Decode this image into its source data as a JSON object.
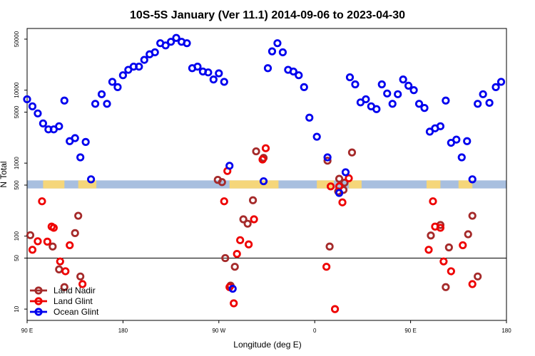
{
  "chart_data": {
    "type": "scatter",
    "title": "10S-5S January (Ver 11.1)   2014-09-06 to 2023-04-30",
    "xlabel": "Longitude (deg E)",
    "ylabel": "N Total",
    "y_scale": "log",
    "xlim_label_order": [
      "90 E",
      "180",
      "90 W",
      "0",
      "90 E",
      "180"
    ],
    "x_ticks": [
      {
        "pos": 0,
        "label": "90 E"
      },
      {
        "pos": 90,
        "label": "180"
      },
      {
        "pos": 180,
        "label": "90 W"
      },
      {
        "pos": 270,
        "label": "0"
      },
      {
        "pos": 360,
        "label": "90 E"
      },
      {
        "pos": 450,
        "label": "180"
      }
    ],
    "y_ticks": [
      {
        "value": 10,
        "label": "10"
      },
      {
        "value": 50,
        "label": "50"
      },
      {
        "value": 100,
        "label": "100"
      },
      {
        "value": 500,
        "label": "500"
      },
      {
        "value": 1000,
        "label": "1000"
      },
      {
        "value": 5000,
        "label": "5000"
      },
      {
        "value": 10000,
        "label": "10000"
      },
      {
        "value": 50000,
        "label": "50000"
      }
    ],
    "xlim": [
      0,
      450
    ],
    "ylim": [
      7,
      70000
    ],
    "reference_line_y": 50,
    "band": {
      "y_low": 450,
      "y_high": 580,
      "color": "#a8bfdf"
    },
    "land_color": "#f5d67a",
    "land_segments": [
      {
        "x_start": 15,
        "x_end": 35
      },
      {
        "x_start": 48,
        "x_end": 65
      },
      {
        "x_start": 190,
        "x_end": 236
      },
      {
        "x_start": 272,
        "x_end": 288
      },
      {
        "x_start": 302,
        "x_end": 314
      },
      {
        "x_start": 375,
        "x_end": 388
      },
      {
        "x_start": 405,
        "x_end": 418
      }
    ],
    "legend_position": "bottom-left",
    "series": [
      {
        "name": "Land Nadir",
        "color": "#a52a2a",
        "points": [
          [
            3,
            103
          ],
          [
            24,
            72
          ],
          [
            30,
            35
          ],
          [
            35,
            20
          ],
          [
            45,
            110
          ],
          [
            48,
            190
          ],
          [
            50,
            28
          ],
          [
            179,
            590
          ],
          [
            183,
            550
          ],
          [
            186,
            50
          ],
          [
            191,
            21
          ],
          [
            195,
            38
          ],
          [
            203,
            170
          ],
          [
            207,
            148
          ],
          [
            212,
            310
          ],
          [
            215,
            1450
          ],
          [
            222,
            1180
          ],
          [
            282,
            1080
          ],
          [
            284,
            72
          ],
          [
            292,
            410
          ],
          [
            293,
            610
          ],
          [
            297,
            430
          ],
          [
            298,
            540
          ],
          [
            305,
            1400
          ],
          [
            379,
            102
          ],
          [
            388,
            142
          ],
          [
            393,
            20
          ],
          [
            396,
            70
          ],
          [
            414,
            106
          ],
          [
            418,
            190
          ],
          [
            423,
            28
          ]
        ]
      },
      {
        "name": "Land Glint",
        "color": "#ee0000",
        "points": [
          [
            5,
            65
          ],
          [
            10,
            85
          ],
          [
            14,
            300
          ],
          [
            19,
            84
          ],
          [
            23,
            135
          ],
          [
            25,
            130
          ],
          [
            31,
            45
          ],
          [
            36,
            33
          ],
          [
            40,
            75
          ],
          [
            52,
            22
          ],
          [
            185,
            300
          ],
          [
            188,
            780
          ],
          [
            190,
            20
          ],
          [
            194,
            12
          ],
          [
            197,
            57
          ],
          [
            200,
            88
          ],
          [
            208,
            77
          ],
          [
            213,
            170
          ],
          [
            221,
            1120
          ],
          [
            224,
            1600
          ],
          [
            281,
            38
          ],
          [
            285,
            480
          ],
          [
            289,
            10
          ],
          [
            293,
            480
          ],
          [
            296,
            290
          ],
          [
            302,
            620
          ],
          [
            377,
            65
          ],
          [
            381,
            300
          ],
          [
            383,
            135
          ],
          [
            388,
            130
          ],
          [
            391,
            45
          ],
          [
            398,
            33
          ],
          [
            409,
            75
          ],
          [
            418,
            22
          ]
        ]
      },
      {
        "name": "Ocean Glint",
        "color": "#0000ee",
        "points": [
          [
            0,
            7500
          ],
          [
            5,
            6000
          ],
          [
            10,
            4800
          ],
          [
            15,
            3500
          ],
          [
            20,
            2900
          ],
          [
            25,
            2900
          ],
          [
            30,
            3200
          ],
          [
            35,
            7200
          ],
          [
            40,
            2000
          ],
          [
            45,
            2200
          ],
          [
            50,
            1200
          ],
          [
            55,
            1950
          ],
          [
            60,
            600
          ],
          [
            64,
            6500
          ],
          [
            70,
            8800
          ],
          [
            75,
            6500
          ],
          [
            80,
            13000
          ],
          [
            85,
            11000
          ],
          [
            90,
            16000
          ],
          [
            95,
            19000
          ],
          [
            100,
            21000
          ],
          [
            105,
            21000
          ],
          [
            110,
            26000
          ],
          [
            115,
            31000
          ],
          [
            120,
            33000
          ],
          [
            125,
            44000
          ],
          [
            130,
            41000
          ],
          [
            135,
            46000
          ],
          [
            140,
            52000
          ],
          [
            145,
            46000
          ],
          [
            150,
            44000
          ],
          [
            155,
            20000
          ],
          [
            160,
            21000
          ],
          [
            165,
            18000
          ],
          [
            170,
            17500
          ],
          [
            175,
            14000
          ],
          [
            180,
            17000
          ],
          [
            185,
            13000
          ],
          [
            190,
            920
          ],
          [
            193,
            19
          ],
          [
            222,
            565
          ],
          [
            226,
            20000
          ],
          [
            230,
            34000
          ],
          [
            235,
            44000
          ],
          [
            240,
            33000
          ],
          [
            245,
            19000
          ],
          [
            250,
            18000
          ],
          [
            255,
            16000
          ],
          [
            260,
            11000
          ],
          [
            265,
            4200
          ],
          [
            272,
            2300
          ],
          [
            282,
            1200
          ],
          [
            293,
            390
          ],
          [
            299,
            750
          ],
          [
            303,
            15000
          ],
          [
            308,
            12000
          ],
          [
            313,
            6800
          ],
          [
            318,
            7500
          ],
          [
            323,
            6000
          ],
          [
            328,
            5500
          ],
          [
            333,
            12000
          ],
          [
            338,
            9000
          ],
          [
            343,
            6500
          ],
          [
            348,
            8800
          ],
          [
            353,
            14000
          ],
          [
            358,
            11500
          ],
          [
            363,
            10000
          ],
          [
            368,
            6500
          ],
          [
            373,
            5700
          ],
          [
            378,
            2700
          ],
          [
            383,
            3000
          ],
          [
            388,
            3200
          ],
          [
            393,
            7200
          ],
          [
            398,
            1900
          ],
          [
            403,
            2100
          ],
          [
            408,
            1200
          ],
          [
            413,
            2000
          ],
          [
            418,
            600
          ],
          [
            423,
            6500
          ],
          [
            428,
            8800
          ],
          [
            434,
            6700
          ],
          [
            440,
            11000
          ],
          [
            445,
            13000
          ]
        ]
      }
    ]
  }
}
